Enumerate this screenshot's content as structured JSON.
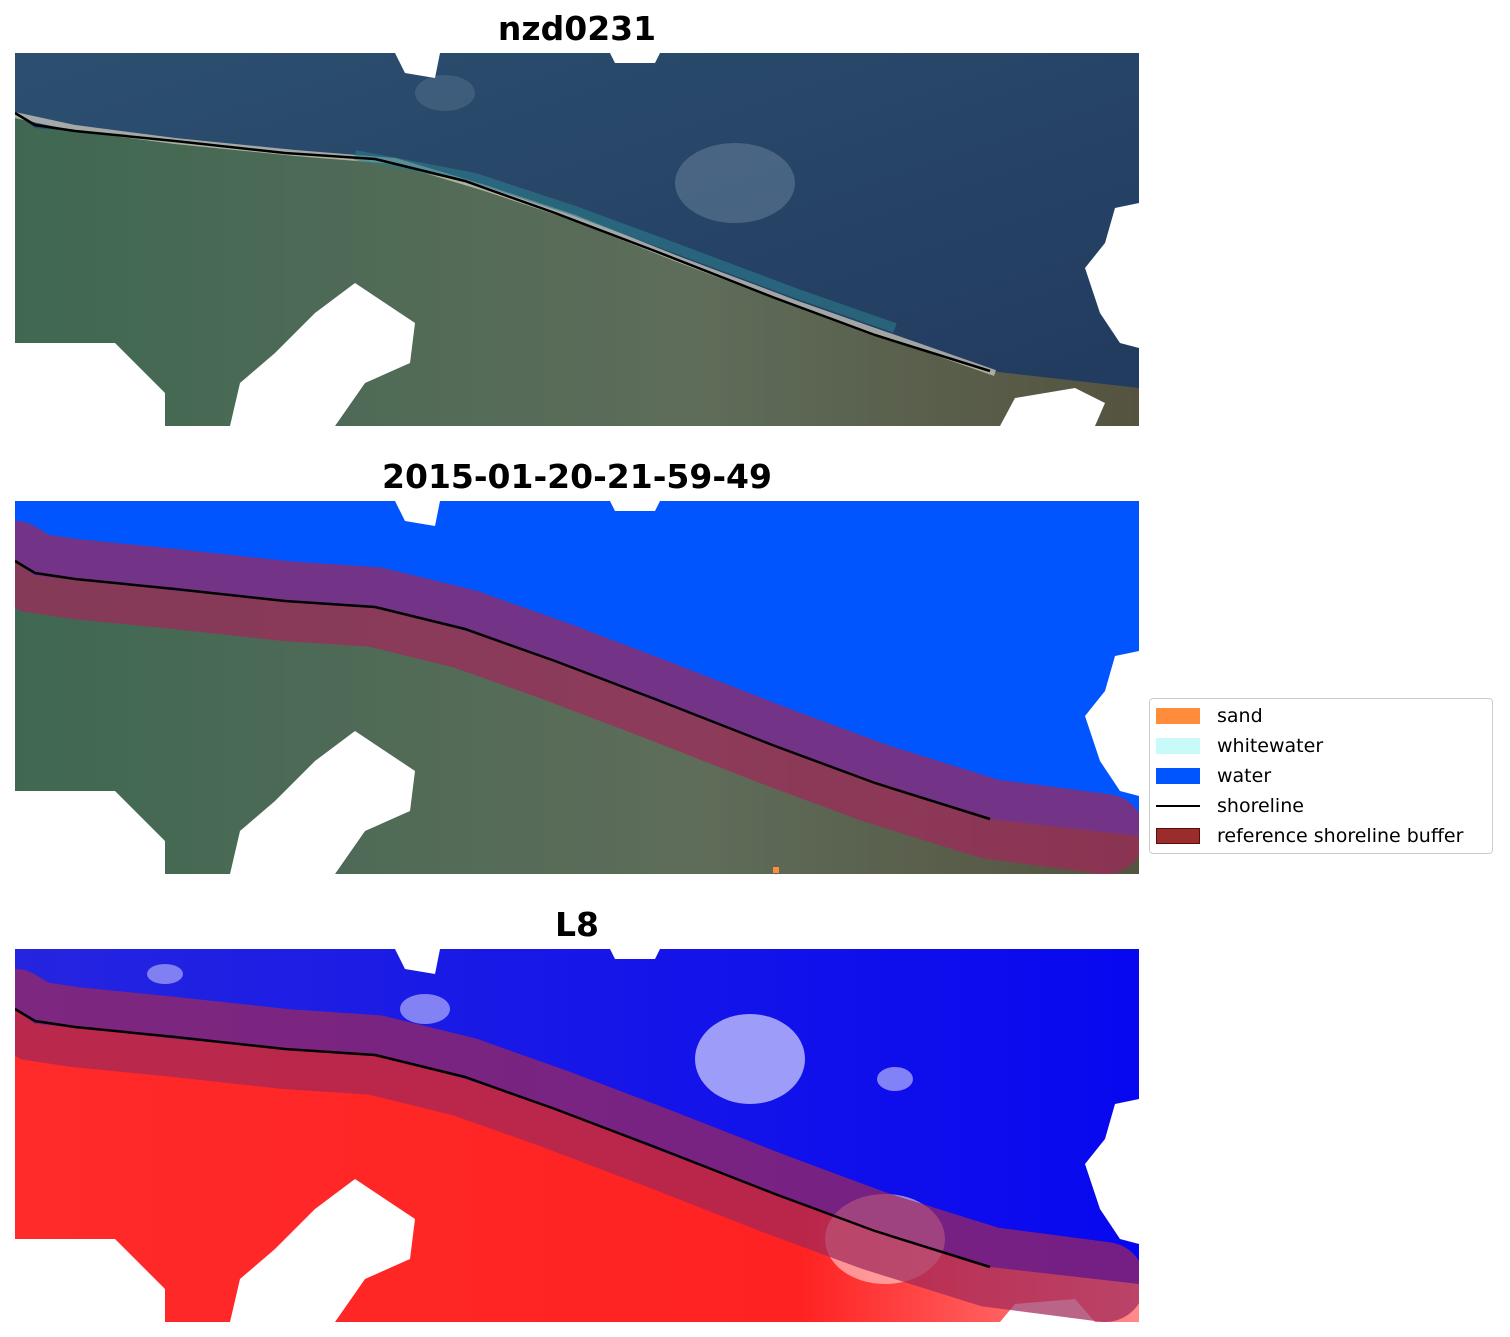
{
  "panels": [
    {
      "title": "nzd0231",
      "kind": "rgb"
    },
    {
      "title": "2015-01-20-21-59-49",
      "kind": "classified"
    },
    {
      "title": "L8",
      "kind": "false-color"
    }
  ],
  "legend": {
    "items": [
      {
        "label": "sand",
        "color": "#ff8c3a"
      },
      {
        "label": "whitewater",
        "color": "#c8fafa"
      },
      {
        "label": "water",
        "color": "#0055ff"
      },
      {
        "label": "shoreline",
        "color": "#000000"
      },
      {
        "label": "reference shoreline buffer",
        "color": "#9b2c2c"
      }
    ]
  },
  "colors": {
    "ocean_rgb": "#2f4a6e",
    "land_rgb": "#4d6b55",
    "water_class": "#0055ff",
    "buffer": "#a0285a",
    "ocean_false": "#1414ee",
    "land_false": "#ff2020"
  }
}
